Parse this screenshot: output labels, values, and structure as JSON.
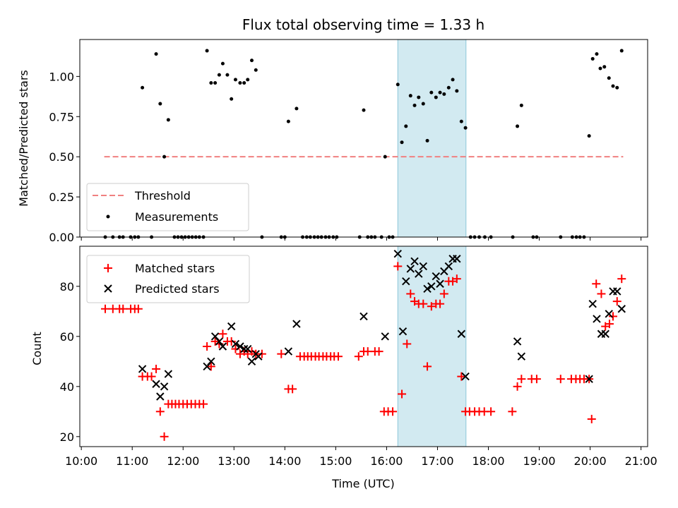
{
  "title": "Flux total observing time = 1.33 h",
  "chart_data": [
    {
      "type": "scatter",
      "panel": "top",
      "ylabel": "Matched/Predicted stars",
      "xlabel": "",
      "xlim": [
        9.97,
        21.13
      ],
      "ylim": [
        0,
        1.23
      ],
      "yticks": [
        0.0,
        0.25,
        0.5,
        0.75,
        1.0
      ],
      "ytick_labels": [
        "0.00",
        "0.25",
        "0.50",
        "0.75",
        "1.00"
      ],
      "xticks": [
        10,
        11,
        12,
        13,
        14,
        15,
        16,
        17,
        18,
        19,
        20,
        21
      ],
      "highlight_span": [
        16.22,
        17.56
      ],
      "threshold": {
        "name": "Threshold",
        "value": 0.5,
        "x_range": [
          10.45,
          20.65
        ],
        "color": "#f08080"
      },
      "legend": {
        "placement": "lower-left",
        "entries": [
          "Threshold",
          "Measurements"
        ]
      },
      "series": [
        {
          "name": "Measurements",
          "color": "#000000",
          "marker": "dot",
          "x": [
            10.47,
            10.62,
            10.75,
            10.82,
            10.97,
            11.05,
            11.12,
            11.2,
            11.38,
            11.47,
            11.55,
            11.63,
            11.71,
            11.83,
            11.9,
            11.97,
            12.04,
            12.11,
            12.18,
            12.25,
            12.32,
            12.4,
            12.47,
            12.55,
            12.63,
            12.71,
            12.78,
            12.87,
            12.95,
            13.03,
            13.12,
            13.2,
            13.27,
            13.35,
            13.43,
            13.55,
            13.93,
            14.0,
            14.07,
            14.23,
            14.35,
            14.43,
            14.5,
            14.58,
            14.65,
            14.72,
            14.8,
            14.87,
            14.95,
            15.02,
            15.47,
            15.55,
            15.63,
            15.7,
            15.77,
            15.9,
            15.97,
            16.05,
            16.12,
            16.22,
            16.3,
            16.38,
            16.47,
            16.55,
            16.63,
            16.72,
            16.8,
            16.88,
            16.97,
            17.05,
            17.13,
            17.22,
            17.3,
            17.38,
            17.47,
            17.55,
            17.65,
            17.73,
            17.82,
            17.93,
            18.05,
            18.48,
            18.57,
            18.65,
            18.88,
            18.95,
            19.42,
            19.65,
            19.73,
            19.8,
            19.88,
            19.98,
            20.05,
            20.13,
            20.2,
            20.28,
            20.37,
            20.45,
            20.53,
            20.62
          ],
          "y": [
            0,
            0,
            0,
            0,
            0,
            0,
            0,
            0.93,
            0,
            1.14,
            0.83,
            0.5,
            0.73,
            0,
            0,
            0,
            0,
            0,
            0,
            0,
            0,
            0,
            1.16,
            0.96,
            0.96,
            1.01,
            1.08,
            1.01,
            0.86,
            0.98,
            0.96,
            0.96,
            0.98,
            1.1,
            1.04,
            0,
            0,
            0,
            0.72,
            0.8,
            0,
            0,
            0,
            0,
            0,
            0,
            0,
            0,
            0,
            0,
            0,
            0.79,
            0,
            0,
            0,
            0,
            0.5,
            0,
            0,
            0.95,
            0.59,
            0.69,
            0.88,
            0.82,
            0.87,
            0.83,
            0.6,
            0.9,
            0.87,
            0.9,
            0.89,
            0.93,
            0.98,
            0.91,
            0.72,
            0.68,
            0,
            0,
            0,
            0,
            0,
            0,
            0.69,
            0.82,
            0,
            0,
            0,
            0,
            0,
            0,
            0,
            0.63,
            1.11,
            1.14,
            1.05,
            1.06,
            0.99,
            0.94,
            0.93,
            1.16
          ]
        }
      ]
    },
    {
      "type": "scatter",
      "panel": "bottom",
      "ylabel": "Count",
      "xlabel": "Time (UTC)",
      "xlim": [
        9.97,
        21.13
      ],
      "ylim": [
        16,
        96
      ],
      "yticks": [
        20,
        40,
        60,
        80
      ],
      "ytick_labels": [
        "20",
        "40",
        "60",
        "80"
      ],
      "xticks": [
        10,
        11,
        12,
        13,
        14,
        15,
        16,
        17,
        18,
        19,
        20,
        21
      ],
      "xtick_labels": [
        "10:00",
        "11:00",
        "12:00",
        "13:00",
        "14:00",
        "15:00",
        "16:00",
        "17:00",
        "18:00",
        "19:00",
        "20:00",
        "21:00"
      ],
      "highlight_span": [
        16.22,
        17.56
      ],
      "legend": {
        "placement": "upper-left",
        "entries": [
          "Matched stars",
          "Predicted stars"
        ]
      },
      "series": [
        {
          "name": "Matched stars",
          "color": "#ff0000",
          "marker": "plus",
          "x": [
            10.47,
            10.62,
            10.75,
            10.82,
            10.97,
            11.05,
            11.12,
            11.2,
            11.3,
            11.38,
            11.47,
            11.55,
            11.63,
            11.71,
            11.78,
            11.85,
            11.92,
            12.0,
            12.08,
            12.16,
            12.24,
            12.32,
            12.4,
            12.47,
            12.55,
            12.63,
            12.71,
            12.78,
            12.87,
            12.95,
            13.03,
            13.12,
            13.2,
            13.27,
            13.35,
            13.43,
            13.55,
            13.93,
            14.07,
            14.15,
            14.3,
            14.38,
            14.45,
            14.52,
            14.6,
            14.67,
            14.75,
            14.82,
            14.9,
            14.97,
            15.05,
            15.45,
            15.55,
            15.63,
            15.77,
            15.85,
            15.95,
            16.03,
            16.12,
            16.22,
            16.3,
            16.4,
            16.47,
            16.55,
            16.63,
            16.72,
            16.8,
            16.88,
            16.97,
            17.05,
            17.13,
            17.22,
            17.3,
            17.38,
            17.47,
            17.55,
            17.63,
            17.73,
            17.82,
            17.92,
            18.05,
            18.47,
            18.57,
            18.65,
            18.85,
            18.95,
            19.42,
            19.63,
            19.72,
            19.8,
            19.88,
            19.98,
            20.03,
            20.12,
            20.22,
            20.3,
            20.38,
            20.45,
            20.53,
            20.62
          ],
          "y": [
            71,
            71,
            71,
            71,
            71,
            71,
            71,
            44,
            44,
            44,
            47,
            30,
            20,
            33,
            33,
            33,
            33,
            33,
            33,
            33,
            33,
            33,
            33,
            56,
            48,
            58,
            57,
            61,
            58,
            58,
            55,
            53,
            54,
            53,
            54,
            53,
            53,
            53,
            39,
            39,
            52,
            52,
            52,
            52,
            52,
            52,
            52,
            52,
            52,
            52,
            52,
            52,
            54,
            54,
            54,
            54,
            30,
            30,
            30,
            88,
            37,
            57,
            77,
            74,
            73,
            73,
            48,
            72,
            73,
            73,
            77,
            82,
            82,
            83,
            44,
            30,
            30,
            30,
            30,
            30,
            30,
            30,
            40,
            43,
            43,
            43,
            43,
            43,
            43,
            43,
            43,
            43,
            27,
            81,
            77,
            64,
            65,
            68,
            74,
            83
          ]
        },
        {
          "name": "Predicted stars",
          "color": "#000000",
          "marker": "x",
          "x": [
            11.2,
            11.47,
            11.55,
            11.63,
            11.71,
            12.47,
            12.55,
            12.63,
            12.71,
            12.78,
            12.95,
            13.03,
            13.12,
            13.2,
            13.27,
            13.35,
            13.43,
            13.48,
            14.07,
            14.23,
            15.55,
            15.97,
            16.22,
            16.32,
            16.38,
            16.47,
            16.55,
            16.63,
            16.72,
            16.8,
            16.88,
            16.97,
            17.05,
            17.13,
            17.22,
            17.3,
            17.38,
            17.47,
            17.55,
            18.57,
            18.65,
            19.98,
            20.05,
            20.13,
            20.22,
            20.3,
            20.37,
            20.45,
            20.53,
            20.62
          ],
          "y": [
            47,
            41,
            36,
            40,
            45,
            48,
            50,
            60,
            58,
            56,
            64,
            57,
            56,
            55,
            55,
            50,
            53,
            52,
            54,
            65,
            68,
            60,
            93,
            62,
            82,
            87,
            90,
            85,
            88,
            79,
            80,
            84,
            81,
            86,
            88,
            91,
            91,
            61,
            44,
            58,
            52,
            43,
            73,
            67,
            61,
            61,
            69,
            78,
            78,
            71
          ]
        }
      ]
    }
  ]
}
